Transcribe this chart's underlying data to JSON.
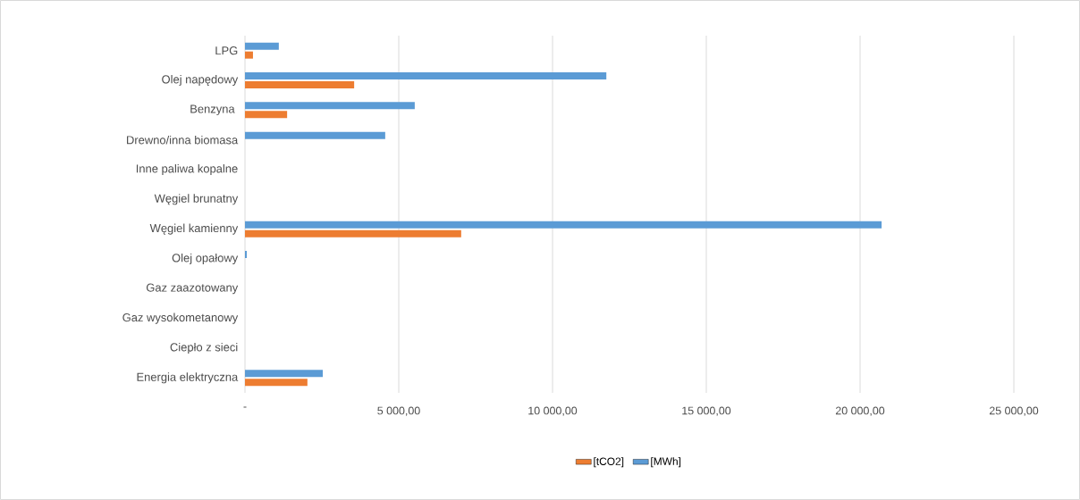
{
  "chart_data": {
    "type": "bar",
    "orientation": "horizontal",
    "categories": [
      "LPG",
      "Olej napędowy",
      "Benzyna ",
      "Drewno/inna biomasa",
      "Inne paliwa kopalne",
      "Węgiel brunatny",
      "Węgiel kamienny",
      "Olej opałowy",
      "Gaz zaazotowany",
      "Gaz wysokometanowy",
      "Ciepło z sieci",
      "Energia elektryczna"
    ],
    "series": [
      {
        "name": "[tCO2]",
        "color": "#ed7d31",
        "values": [
          260,
          3550,
          1370,
          0,
          0,
          0,
          7030,
          0,
          0,
          0,
          0,
          2030
        ]
      },
      {
        "name": "[MWh]",
        "color": "#5b9bd5",
        "values": [
          1100,
          11750,
          5520,
          4560,
          0,
          0,
          20700,
          60,
          0,
          0,
          0,
          2530
        ]
      }
    ],
    "xlim": [
      0,
      25000
    ],
    "xticks": [
      {
        "value": 0,
        "label": "-"
      },
      {
        "value": 5000,
        "label": "5 000,00"
      },
      {
        "value": 10000,
        "label": "10 000,00"
      },
      {
        "value": 15000,
        "label": "15 000,00"
      },
      {
        "value": 20000,
        "label": "20 000,00"
      },
      {
        "value": 25000,
        "label": "25 000,00"
      }
    ],
    "grid": "x",
    "legend": "bottom"
  }
}
